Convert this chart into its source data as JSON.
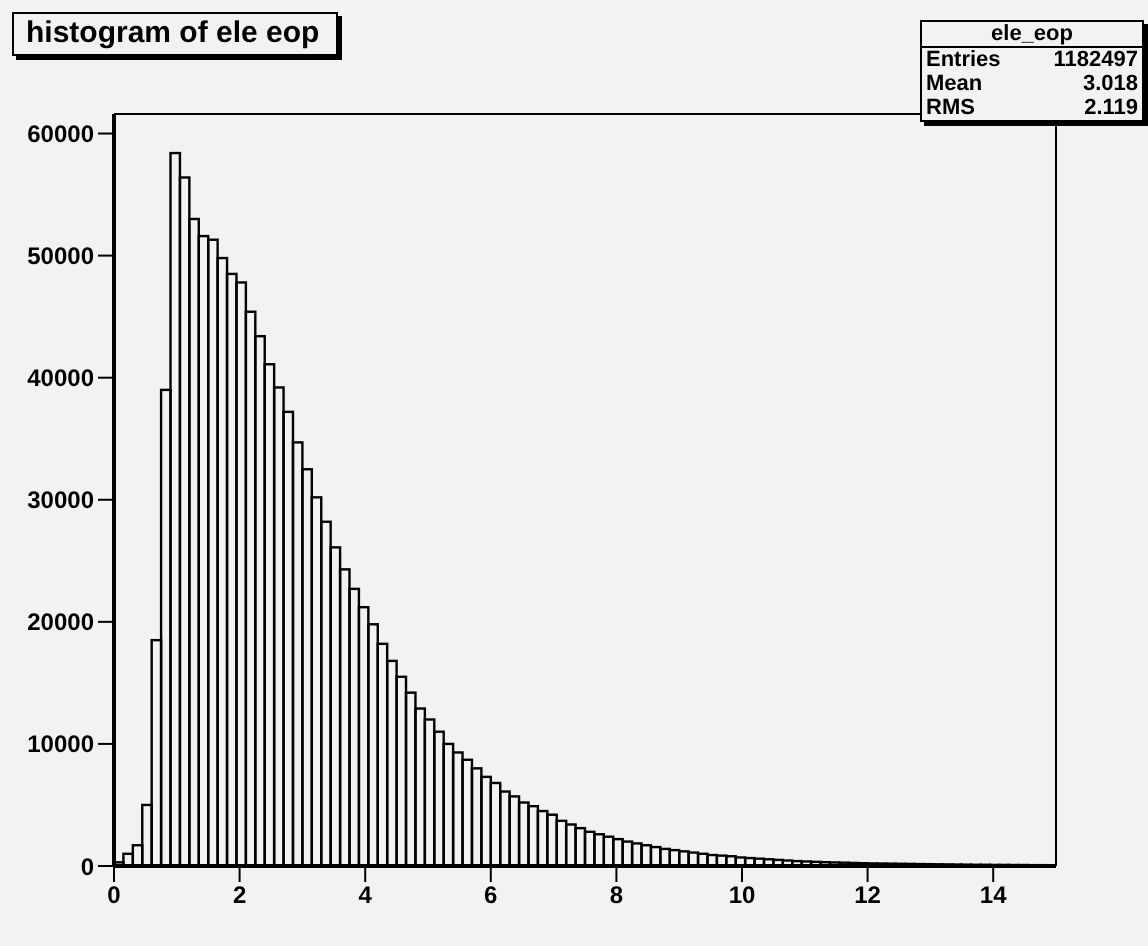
{
  "chart_data": {
    "type": "histogram",
    "title": "histogram of ele eop",
    "color": "#000000",
    "bins": [
      0,
      0.15,
      0.3,
      0.45,
      0.6,
      0.75,
      0.9,
      1.05,
      1.2,
      1.35,
      1.5,
      1.65,
      1.8,
      1.95,
      2.1,
      2.25,
      2.4,
      2.55,
      2.7,
      2.85,
      3,
      3.15,
      3.3,
      3.45,
      3.6,
      3.75,
      3.9,
      4.05,
      4.2,
      4.35,
      4.5,
      4.65,
      4.8,
      4.95,
      5.1,
      5.25,
      5.4,
      5.55,
      5.7,
      5.85,
      6,
      6.15,
      6.3,
      6.45,
      6.6,
      6.75,
      6.9,
      7.05,
      7.2,
      7.35,
      7.5,
      7.65,
      7.8,
      7.95,
      8.1,
      8.25,
      8.4,
      8.55,
      8.7,
      8.85,
      9,
      9.15,
      9.3,
      9.45,
      9.6,
      9.75,
      9.9,
      10.05,
      10.2,
      10.35,
      10.5,
      10.65,
      10.8,
      10.95,
      11.1,
      11.25,
      11.4,
      11.55,
      11.7,
      11.85,
      12,
      12.15,
      12.3,
      12.45,
      12.6,
      12.75,
      12.9,
      13.05,
      13.2,
      13.35,
      13.5,
      13.65,
      13.8,
      13.95,
      14.1,
      14.25,
      14.4,
      14.55,
      14.7,
      14.85,
      15
    ],
    "values": [
      300,
      1000,
      1700,
      5000,
      18500,
      39000,
      58400,
      56400,
      53000,
      51600,
      51300,
      49800,
      48500,
      47800,
      45400,
      43400,
      41100,
      39200,
      37200,
      34700,
      32500,
      30200,
      28200,
      26100,
      24300,
      22700,
      21200,
      19800,
      18200,
      16800,
      15500,
      14200,
      12900,
      12000,
      11000,
      10000,
      9300,
      8700,
      8000,
      7300,
      6800,
      6100,
      5700,
      5200,
      4900,
      4500,
      4200,
      3700,
      3400,
      3100,
      2800,
      2600,
      2400,
      2200,
      2000,
      1850,
      1700,
      1550,
      1400,
      1300,
      1200,
      1100,
      1000,
      900,
      850,
      800,
      700,
      650,
      600,
      550,
      500,
      450,
      400,
      370,
      340,
      310,
      290,
      270,
      250,
      230,
      210,
      200,
      190,
      180,
      170,
      160,
      150,
      140,
      130,
      120,
      110,
      100,
      100,
      90,
      90,
      80,
      80,
      70,
      70,
      60
    ],
    "xlim": [
      0,
      15
    ],
    "xticks": [
      0,
      2,
      4,
      6,
      8,
      10,
      12,
      14
    ],
    "ylim": [
      0,
      61600
    ],
    "yticks": [
      0,
      10000,
      20000,
      30000,
      40000,
      50000,
      60000
    ],
    "grid": false,
    "annotations": [
      "ele_eop",
      "Entries 1182497",
      "Mean 3.018",
      "RMS 2.119"
    ]
  }
}
